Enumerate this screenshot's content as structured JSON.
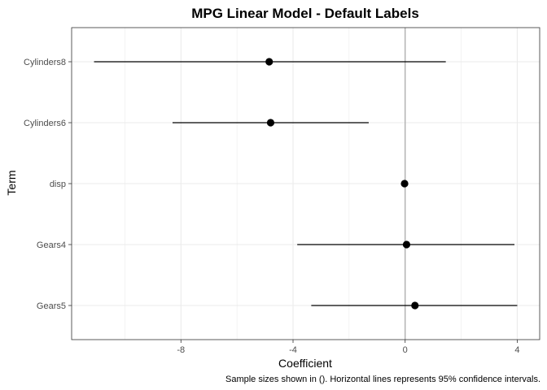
{
  "chart_data": {
    "type": "scatter",
    "subtype": "coefficient-plot",
    "title": "MPG Linear Model - Default Labels",
    "xlabel": "Coefficient",
    "ylabel": "Term",
    "xlim": [
      -11.9,
      4.8
    ],
    "x_ticks": [
      -8,
      -4,
      0,
      4
    ],
    "x_tick_labels": [
      "-8",
      "-4",
      "0",
      "4"
    ],
    "reference_line_x": 0,
    "terms": [
      "Cylinders8",
      "Cylinders6",
      "disp",
      "Gears4",
      "Gears5"
    ],
    "estimates": [
      -4.85,
      -4.8,
      -0.02,
      0.05,
      0.35
    ],
    "ci_low": [
      -11.1,
      -8.3,
      -0.05,
      -3.85,
      -3.35
    ],
    "ci_high": [
      1.45,
      -1.3,
      0.01,
      3.9,
      4.0
    ],
    "grid": true,
    "caption": "Sample sizes shown in (). Horizontal lines represents 95% confidence intervals.",
    "colors": {
      "points": "#000000",
      "grid": "#ebebeb",
      "reference_line": "#a6a6a6",
      "panel_border": "#333333"
    }
  }
}
